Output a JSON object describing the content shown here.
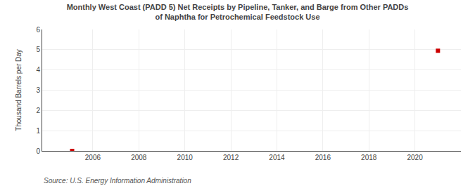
{
  "chart_data": {
    "type": "scatter",
    "title": "Monthly West Coast (PADD 5) Net Receipts by Pipeline, Tanker, and Barge from Other PADDs\nof Naphtha for Petrochemical Feedstock Use",
    "y_label": "Thousand Barrels per Day",
    "annotations": [
      "Source: U.S. Energy Information Administration"
    ],
    "x": [
      2005.1,
      2021.0
    ],
    "values": [
      0.0,
      4.95
    ],
    "color": "#cc0000",
    "marker": "square",
    "xlim": [
      2003.8,
      2022.0
    ],
    "xticks": [
      2006,
      2008,
      2010,
      2012,
      2014,
      2016,
      2018,
      2020
    ],
    "ylim": [
      0,
      6
    ],
    "yticks": [
      0,
      1,
      2,
      3,
      4,
      5,
      6
    ],
    "grid": true
  }
}
